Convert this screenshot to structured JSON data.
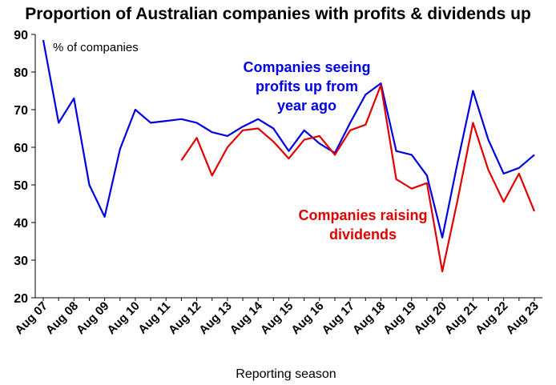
{
  "chart_data": {
    "type": "line",
    "title": "Proportion of Australian companies with profits & dividends up",
    "xlabel": "Reporting season",
    "ylabel": "",
    "unit_label": "% of companies",
    "ylim": [
      20,
      90
    ],
    "yticks": [
      20,
      30,
      40,
      50,
      60,
      70,
      80,
      90
    ],
    "grid": false,
    "x_ticks": [
      "Aug 07",
      "Aug 08",
      "Aug 09",
      "Aug 10",
      "Aug 11",
      "Aug 12",
      "Aug 13",
      "Aug 14",
      "Aug 15",
      "Aug 16",
      "Aug 17",
      "Aug 18",
      "Aug 19",
      "Aug 20",
      "Aug 21",
      "Aug 22",
      "Aug 23"
    ],
    "x": [
      "Aug 07",
      "Feb 08",
      "Aug 08",
      "Feb 09",
      "Aug 09",
      "Feb 10",
      "Aug 10",
      "Feb 11",
      "Aug 11",
      "Feb 12",
      "Aug 12",
      "Feb 13",
      "Aug 13",
      "Feb 14",
      "Aug 14",
      "Feb 15",
      "Aug 15",
      "Feb 16",
      "Aug 16",
      "Feb 17",
      "Aug 17",
      "Feb 18",
      "Aug 18",
      "Feb 19",
      "Aug 19",
      "Feb 20",
      "Aug 20",
      "Feb 21",
      "Aug 21",
      "Feb 22",
      "Aug 22",
      "Feb 23",
      "Aug 23"
    ],
    "series": [
      {
        "name": "Companies seeing profits up from year ago",
        "color": "#0000e0",
        "values": [
          88.5,
          66.5,
          73,
          50,
          41.5,
          59.5,
          70,
          66.5,
          67,
          67.5,
          66.5,
          64,
          63,
          65.5,
          67.5,
          65,
          59,
          64.5,
          61,
          58.5,
          66.5,
          74,
          77,
          59,
          58,
          52.5,
          36,
          56,
          75,
          62,
          53,
          54.5,
          58
        ]
      },
      {
        "name": "Companies raising dividends",
        "color": "#e00000",
        "values": [
          null,
          null,
          null,
          null,
          null,
          null,
          null,
          null,
          null,
          56.5,
          62.5,
          52.5,
          60,
          64.5,
          65,
          61.5,
          57,
          62,
          63,
          58,
          64.5,
          66,
          76.5,
          51.5,
          49,
          50.5,
          27,
          46,
          66.5,
          54,
          45.5,
          53,
          43
        ]
      }
    ],
    "annotations": {
      "profits": [
        "Companies seeing",
        "profits up from",
        "year ago"
      ],
      "dividends": [
        "Companies raising",
        "dividends"
      ]
    }
  }
}
